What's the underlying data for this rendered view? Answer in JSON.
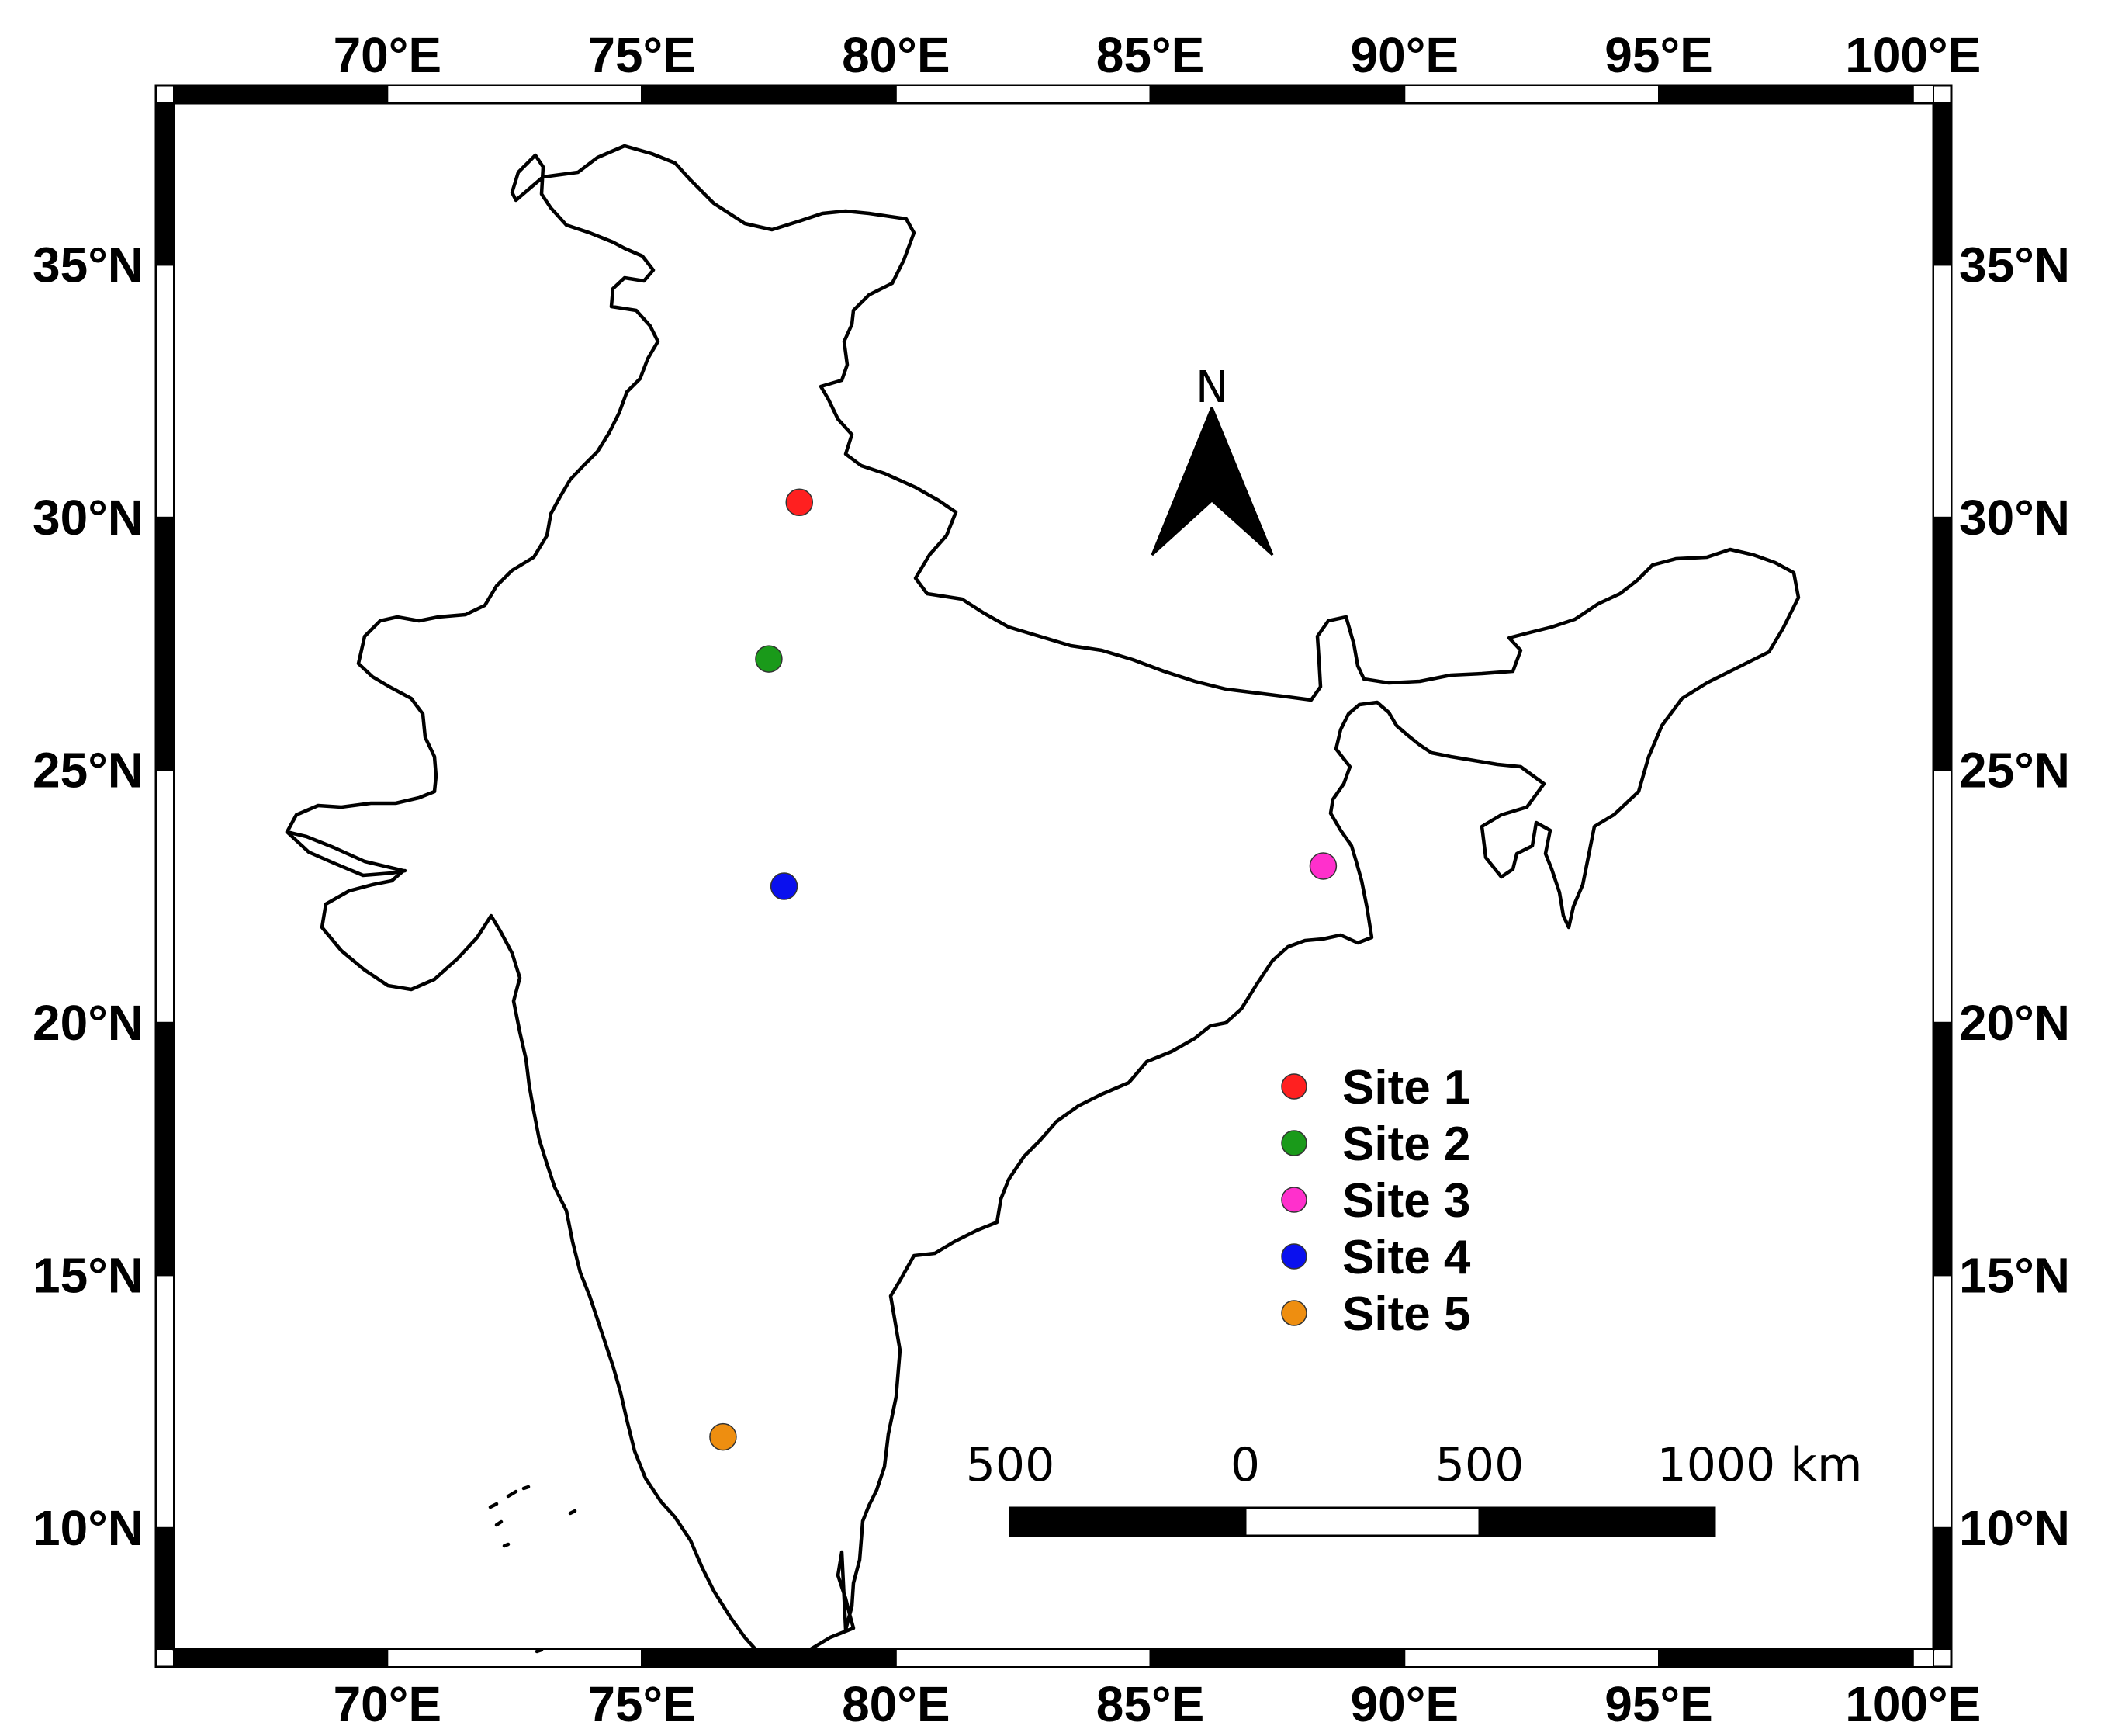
{
  "map": {
    "x_ticks": [
      "70°E",
      "75°E",
      "80°E",
      "85°E",
      "90°E",
      "95°E",
      "100°E"
    ],
    "y_ticks": [
      "35°N",
      "30°N",
      "25°N",
      "20°N",
      "15°N",
      "10°N"
    ],
    "extent": {
      "lon_min": 65.8,
      "lon_max": 100.4,
      "lat_min": 7.6,
      "lat_max": 38.2
    },
    "north_arrow_label": "N",
    "sites": [
      {
        "name": "Site 1",
        "lon": 78.1,
        "lat": 30.3,
        "color": "#ff2020"
      },
      {
        "name": "Site 2",
        "lon": 77.5,
        "lat": 27.2,
        "color": "#1a9a1a"
      },
      {
        "name": "Site 3",
        "lon": 88.4,
        "lat": 23.1,
        "color": "#ff30cc"
      },
      {
        "name": "Site 4",
        "lon": 77.8,
        "lat": 22.7,
        "color": "#0a10ee"
      },
      {
        "name": "Site 5",
        "lon": 76.6,
        "lat": 11.8,
        "color": "#ee8e10"
      }
    ],
    "scale_bar": {
      "labels": [
        "500",
        "0",
        "500",
        "1000 km"
      ]
    }
  }
}
